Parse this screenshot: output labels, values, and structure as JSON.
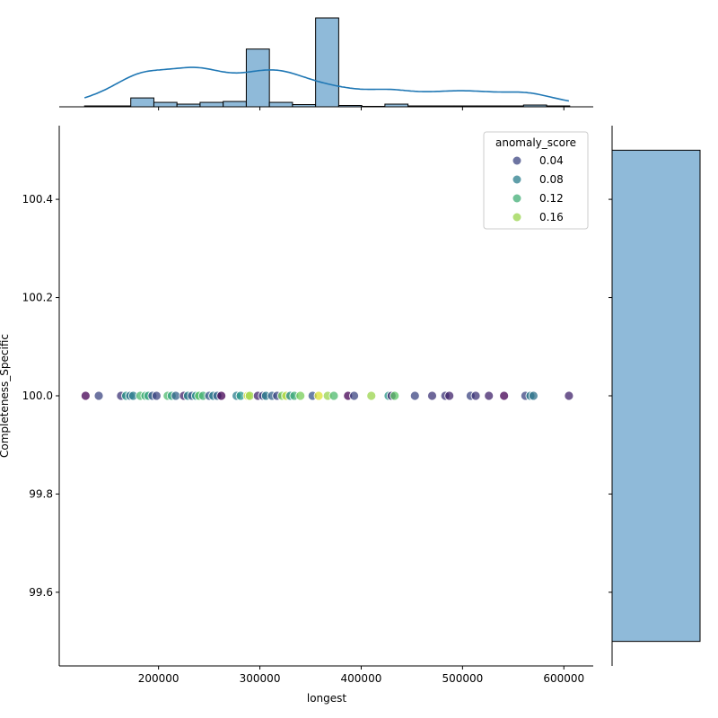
{
  "chart_data": {
    "type": "scatter",
    "subtype": "jointplot",
    "xlabel": "longest",
    "ylabel": "Completeness_Specific",
    "xlim": [
      102000,
      629000
    ],
    "ylim": [
      99.45,
      100.55
    ],
    "xticks": [
      200000,
      300000,
      400000,
      500000,
      600000
    ],
    "yticks": [
      99.6,
      99.8,
      100.0,
      100.2,
      100.4
    ],
    "ytick_labels": [
      "99.6",
      "99.8",
      "100.0",
      "100.2",
      "100.4"
    ],
    "grid": false,
    "legend": {
      "title": "anomaly_score",
      "placement": "top-right",
      "entries": [
        "0.04",
        "0.08",
        "0.12",
        "0.16"
      ],
      "values": [
        0.04,
        0.08,
        0.12,
        0.16
      ]
    },
    "colormap": "viridis",
    "hue_range": [
      0,
      0.19
    ],
    "points": [
      [
        128000,
        0.0
      ],
      [
        141000,
        0.04
      ],
      [
        163000,
        0.03
      ],
      [
        168000,
        0.1
      ],
      [
        172000,
        0.07
      ],
      [
        175000,
        0.08
      ],
      [
        182000,
        0.13
      ],
      [
        187000,
        0.12
      ],
      [
        190000,
        0.11
      ],
      [
        194000,
        0.05
      ],
      [
        198000,
        0.04
      ],
      [
        209000,
        0.13
      ],
      [
        213000,
        0.11
      ],
      [
        217000,
        0.06
      ],
      [
        225000,
        0.02
      ],
      [
        229000,
        0.09
      ],
      [
        233000,
        0.05
      ],
      [
        237000,
        0.1
      ],
      [
        240000,
        0.14
      ],
      [
        244000,
        0.12
      ],
      [
        250000,
        0.05
      ],
      [
        254000,
        0.08
      ],
      [
        258000,
        0.06
      ],
      [
        262000,
        0.0
      ],
      [
        277000,
        0.08
      ],
      [
        281000,
        0.1
      ],
      [
        288000,
        0.18
      ],
      [
        290000,
        0.16
      ],
      [
        298000,
        0.02
      ],
      [
        303000,
        0.04
      ],
      [
        306000,
        0.08
      ],
      [
        312000,
        0.06
      ],
      [
        317000,
        0.04
      ],
      [
        322000,
        0.15
      ],
      [
        326000,
        0.17
      ],
      [
        330000,
        0.09
      ],
      [
        334000,
        0.12
      ],
      [
        340000,
        0.15
      ],
      [
        352000,
        0.05
      ],
      [
        358000,
        0.18
      ],
      [
        367000,
        0.16
      ],
      [
        373000,
        0.13
      ],
      [
        387000,
        0.0
      ],
      [
        393000,
        0.04
      ],
      [
        410000,
        0.16
      ],
      [
        427000,
        0.1
      ],
      [
        430000,
        0.02
      ],
      [
        433000,
        0.14
      ],
      [
        453000,
        0.04
      ],
      [
        470000,
        0.03
      ],
      [
        483000,
        0.03
      ],
      [
        487000,
        0.02
      ],
      [
        508000,
        0.04
      ],
      [
        513000,
        0.03
      ],
      [
        526000,
        0.02
      ],
      [
        541000,
        0.0
      ],
      [
        562000,
        0.04
      ],
      [
        567000,
        0.08
      ],
      [
        570000,
        0.07
      ],
      [
        605000,
        0.02
      ]
    ],
    "y_value": 100.0,
    "top_histogram": {
      "bin_start": 127000,
      "bin_width": 22800,
      "counts": [
        0.4,
        0.4,
        4,
        2,
        1.2,
        2,
        2.4,
        26,
        2,
        1,
        40,
        0.6,
        0.2,
        1.2,
        0.4,
        0.4,
        0.4,
        0.4,
        0.4,
        0.8,
        0.4
      ],
      "kde": true
    },
    "right_histogram": {
      "bins": [
        [
          99.5,
          100.5
        ]
      ],
      "counts": [
        60
      ]
    },
    "bar_color": "#8fbad9",
    "kde_color": "#1f77b4"
  }
}
